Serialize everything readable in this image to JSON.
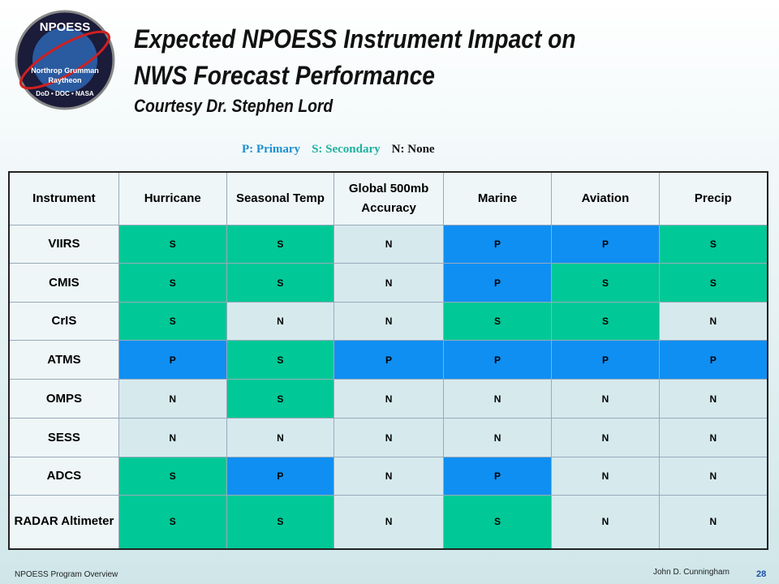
{
  "logo": {
    "name": "NPOESS",
    "line1": "Northrop Grumman",
    "line2": "Raytheon",
    "line3": "DoD • DOC • NASA"
  },
  "header": {
    "title_line1": "Expected NPOESS Instrument Impact on",
    "title_line2": "NWS Forecast Performance",
    "subtitle": "Courtesy Dr. Stephen Lord"
  },
  "legend": [
    {
      "text": "P: Primary",
      "color": "#1e90d0",
      "fill": "#0f8ff2"
    },
    {
      "text": "S: Secondary",
      "color": "#20b0a0",
      "fill": "#00c896"
    },
    {
      "text": "N: None",
      "color": "#111111",
      "fill": "#d6eaee"
    }
  ],
  "table": {
    "columns": [
      "Instrument",
      "Hurricane",
      "Seasonal Temp",
      "Global 500mb Accuracy",
      "Marine",
      "Aviation",
      "Precip"
    ],
    "rows": [
      [
        "VIIRS",
        "S",
        "S",
        "N",
        "P",
        "P",
        "S"
      ],
      [
        "CMIS",
        "S",
        "S",
        "N",
        "P",
        "S",
        "S"
      ],
      [
        "CrIS",
        "S",
        "N",
        "N",
        "S",
        "S",
        "N"
      ],
      [
        "ATMS",
        "P",
        "S",
        "P",
        "P",
        "P",
        "P"
      ],
      [
        "OMPS",
        "N",
        "S",
        "N",
        "N",
        "N",
        "N"
      ],
      [
        "SESS",
        "N",
        "N",
        "N",
        "N",
        "N",
        "N"
      ],
      [
        "ADCS",
        "S",
        "P",
        "N",
        "P",
        "N",
        "N"
      ],
      [
        "RADAR Altimeter",
        "S",
        "S",
        "N",
        "S",
        "N",
        "N"
      ]
    ]
  },
  "footer": {
    "left": "NPOESS Program Overview",
    "author": "John D. Cunningham",
    "page": "28"
  }
}
